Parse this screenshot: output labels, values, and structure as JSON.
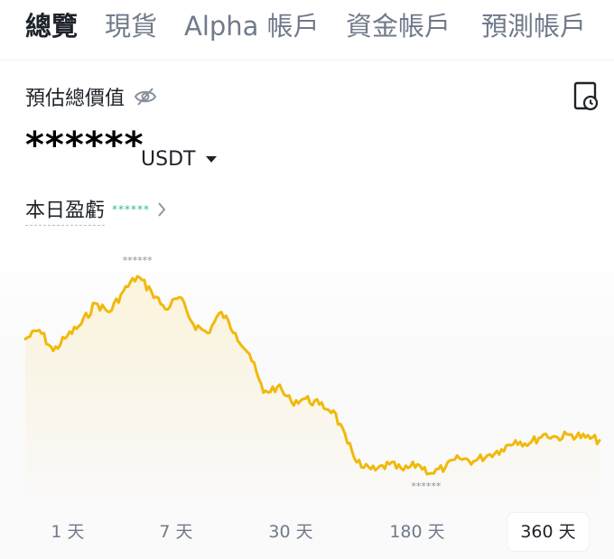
{
  "tabs": [
    "總覽",
    "現貨",
    "Alpha 帳戶",
    "資金帳戶",
    "預測帳戶"
  ],
  "active_tab_index": 0,
  "estimated_total_label": "預估總價值",
  "balance_masked": "******",
  "currency": "USDT",
  "daily_pnl_label": "本日盈虧",
  "daily_pnl_value": "******",
  "chart": {
    "max_label": "******",
    "min_label": "******",
    "line_color": "#f0b90b"
  },
  "chart_data": {
    "type": "area",
    "title": "",
    "xlabel": "",
    "ylabel": "",
    "y": [
      68,
      71,
      64,
      69,
      73,
      80,
      77,
      84,
      89,
      84,
      78,
      82,
      73,
      70,
      77,
      70,
      63,
      50,
      52,
      47,
      48,
      46,
      44,
      33,
      25,
      24,
      26,
      24,
      26,
      23,
      25,
      28,
      27,
      29,
      31,
      34,
      33,
      36,
      35,
      36,
      35,
      34
    ]
  },
  "periods": [
    "1 天",
    "7 天",
    "30 天",
    "180 天",
    "360 天"
  ],
  "active_period_index": 4
}
